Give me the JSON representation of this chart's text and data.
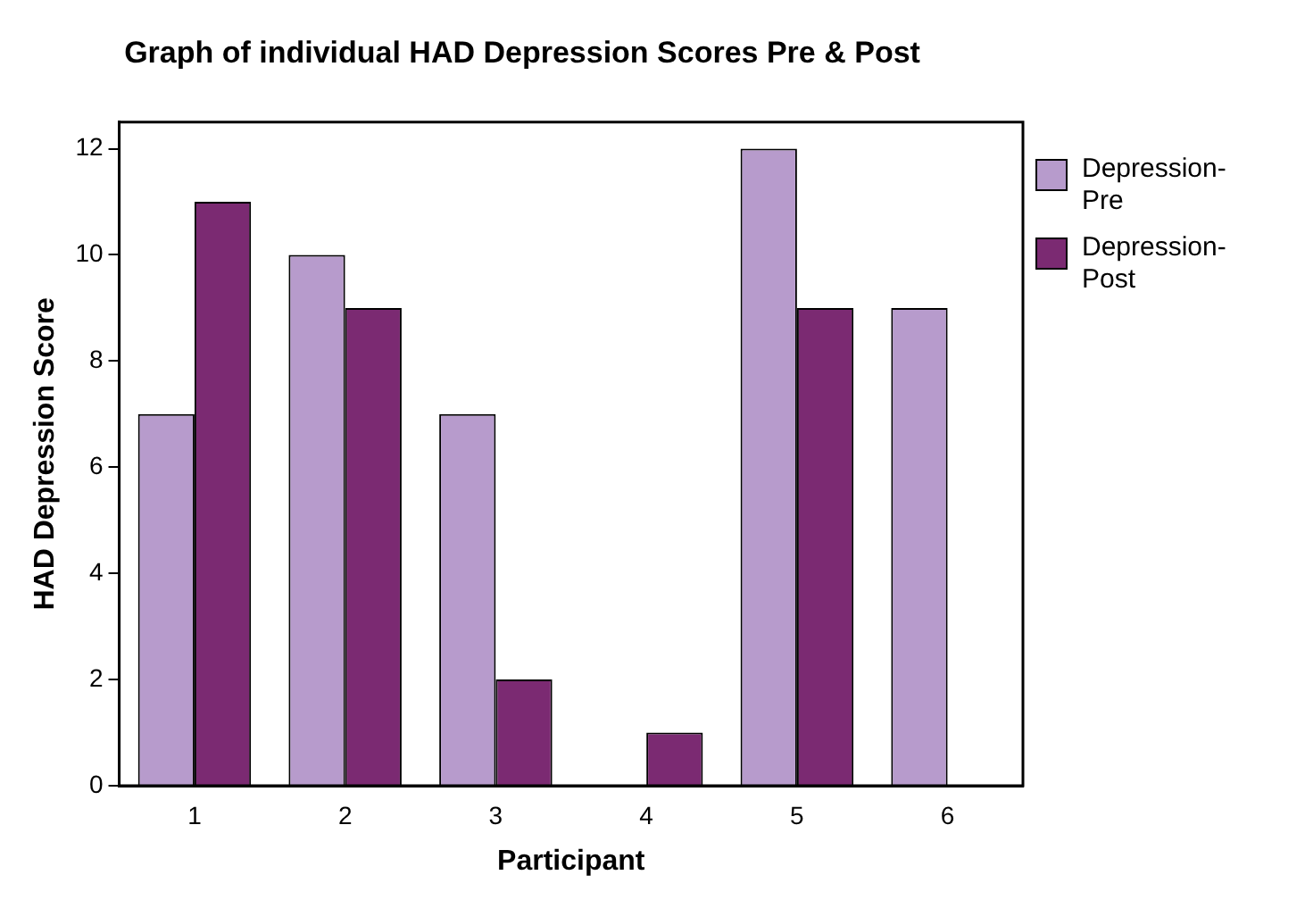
{
  "chart_data": {
    "type": "bar",
    "title": "Graph of individual HAD Depression Scores Pre & Post",
    "xlabel": "Participant",
    "ylabel": "HAD Depression Score",
    "categories": [
      "1",
      "2",
      "3",
      "4",
      "5",
      "6"
    ],
    "series": [
      {
        "name": "Depression-Pre",
        "color": "#b79bcc",
        "values": [
          7,
          10,
          7,
          0,
          12,
          9
        ]
      },
      {
        "name": "Depression-Post",
        "color": "#7b2a72",
        "values": [
          11,
          9,
          2,
          1,
          9,
          null
        ]
      }
    ],
    "ylim": [
      0,
      12.5
    ],
    "yticks": [
      0,
      2,
      4,
      6,
      8,
      10,
      12
    ],
    "grid": false,
    "legend": "right"
  }
}
